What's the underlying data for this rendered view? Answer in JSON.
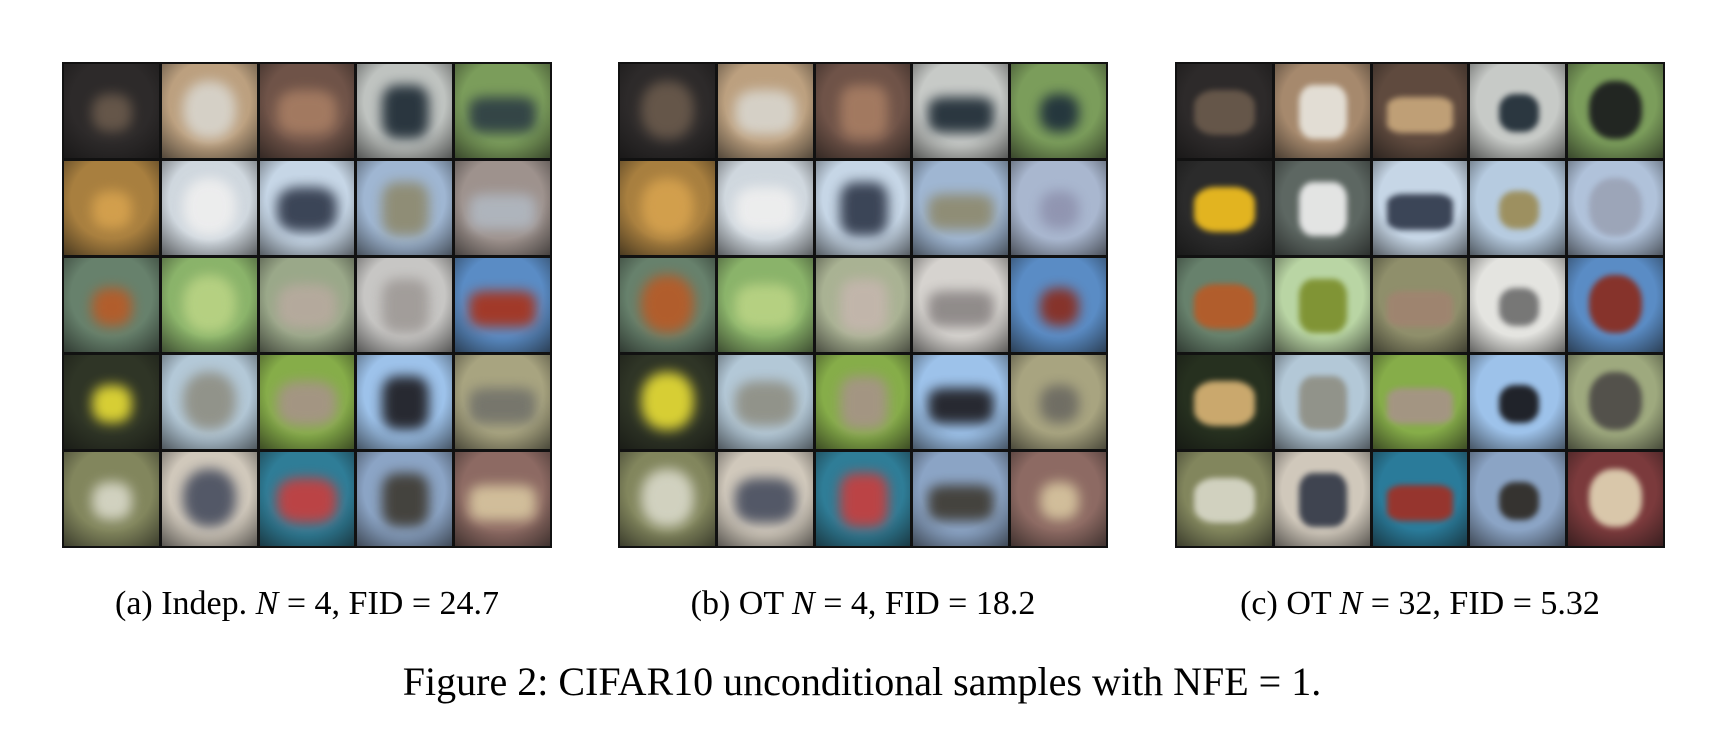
{
  "panels": [
    {
      "caption_prefix": "(a) Indep. ",
      "caption_math": "N",
      "caption_eq": " = 4",
      "caption_suffix": ", FID = 24.7",
      "tiles": [
        [
          "#2d2a2a",
          "#bca07f",
          "#6f5348",
          "#bfc3c0",
          "#7b9d5b"
        ],
        [
          "#a87f3f",
          "#cfd7de",
          "#c6d6e6",
          "#9fb6d2",
          "#9e928d"
        ],
        [
          "#67816c",
          "#8ab36a",
          "#9aa889",
          "#c7c6c4",
          "#5a8cc5"
        ],
        [
          "#2f3526",
          "#b3c8d7",
          "#86ad49",
          "#9dc2ea",
          "#a8a480"
        ],
        [
          "#82865d",
          "#d0c8bb",
          "#2f7d97",
          "#8ba4c5",
          "#8d6a63"
        ]
      ],
      "subjects": [
        [
          "#6a5a4c",
          "#d8d5cd",
          "#a77d63",
          "#1e2b35",
          "#2e3e45"
        ],
        [
          "#d6a24e",
          "#efefef",
          "#30394b",
          "#8e8a6f",
          "#b0b7c0"
        ],
        [
          "#b85b27",
          "#b9d384",
          "#b7aa9e",
          "#9f9a97",
          "#a8331c"
        ],
        [
          "#e6dc36",
          "#8f8f84",
          "#a69487",
          "#1e1d22",
          "#73736b"
        ],
        [
          "#d8d8c8",
          "#494f60",
          "#c73f3f",
          "#3f3b33",
          "#d7c59f"
        ]
      ]
    },
    {
      "caption_prefix": "(b) OT ",
      "caption_math": "N",
      "caption_eq": " = 4",
      "caption_suffix": ", FID = 18.2",
      "tiles": [
        [
          "#2d2a2a",
          "#bca07f",
          "#6f5348",
          "#c7cac7",
          "#7b9d5b"
        ],
        [
          "#a87f3f",
          "#cfd7de",
          "#c6d6e6",
          "#9fb6d2",
          "#a9b7cf"
        ],
        [
          "#67816c",
          "#8ab36a",
          "#a9b293",
          "#d6d3cf",
          "#5a8cc5"
        ],
        [
          "#2f3526",
          "#b3c8d7",
          "#86ad49",
          "#9dc2ea",
          "#a8a480"
        ],
        [
          "#82865d",
          "#d0c8bb",
          "#2f7d97",
          "#8ba4c5",
          "#8d6a63"
        ]
      ],
      "subjects": [
        [
          "#6a5a4c",
          "#d8d5cd",
          "#a77d63",
          "#1e2b35",
          "#1e2f3b"
        ],
        [
          "#d6a24e",
          "#efefef",
          "#30394b",
          "#8e8a6f",
          "#8f93af"
        ],
        [
          "#b85b27",
          "#b9d384",
          "#c4b6ad",
          "#8b8685",
          "#8a2c1e"
        ],
        [
          "#e6dc36",
          "#8f8f84",
          "#a69487",
          "#1e1d22",
          "#6c6a62"
        ],
        [
          "#d8d8c8",
          "#494f60",
          "#c73f3f",
          "#3f3b33",
          "#d7c59f"
        ]
      ]
    },
    {
      "caption_prefix": "(c) OT ",
      "caption_math": "N",
      "caption_eq": " = 32",
      "caption_suffix": ", FID = 5.32",
      "tiles": [
        [
          "#2d2a2a",
          "#a6896d",
          "#5f4a3e",
          "#c7cac7",
          "#7b9d5b"
        ],
        [
          "#2b2b2b",
          "#5d6762",
          "#c6d6e6",
          "#b6cbe0",
          "#b0c2da"
        ],
        [
          "#67816c",
          "#b9d5a4",
          "#8f8f6b",
          "#e4e4e0",
          "#5a8cc5"
        ],
        [
          "#26301f",
          "#b3c8d7",
          "#86ad49",
          "#9dc2ea",
          "#9ea97e"
        ],
        [
          "#82865d",
          "#d0c8bb",
          "#2a7b9a",
          "#8ba4c5",
          "#7b3a3c"
        ]
      ],
      "subjects": [
        [
          "#6a5a4c",
          "#e8e5dd",
          "#c8a77b",
          "#1e2b35",
          "#1b1c1e"
        ],
        [
          "#f2c020",
          "#efefef",
          "#30394b",
          "#9b8c56",
          "#9ba3b6"
        ],
        [
          "#b85b27",
          "#7c8f2c",
          "#a08470",
          "#6e6e6e",
          "#8a2c1e"
        ],
        [
          "#d8b374",
          "#8f8f84",
          "#a69487",
          "#16161a",
          "#4d4a47"
        ],
        [
          "#d8d8c8",
          "#333947",
          "#a03025",
          "#2e2a24",
          "#e1d3b4"
        ]
      ]
    }
  ],
  "figure_caption": "Figure 2: CIFAR10 unconditional samples with NFE = 1."
}
